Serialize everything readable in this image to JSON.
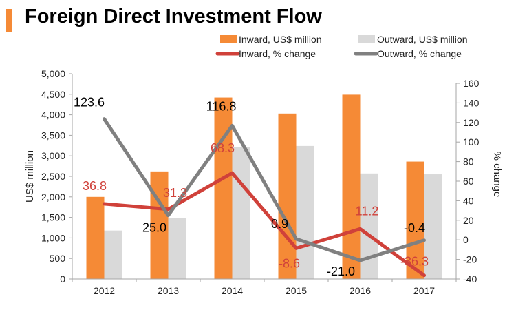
{
  "chart_data": {
    "type": "bar",
    "title": "Foreign Direct Investment Flow",
    "categories": [
      "2012",
      "2013",
      "2014",
      "2015",
      "2016",
      "2017"
    ],
    "ylabel": "US$ million",
    "y2label": "% change",
    "ylim": [
      0,
      5000
    ],
    "y_ticks": [
      "0",
      "500",
      "1,000",
      "1,500",
      "2,000",
      "2,500",
      "3,000",
      "3,500",
      "4,000",
      "4,500",
      "5,000"
    ],
    "y2lim": [
      -40,
      160
    ],
    "y2_ticks": [
      "-40",
      "-20",
      "0",
      "20",
      "40",
      "60",
      "80",
      "100",
      "120",
      "140",
      "160"
    ],
    "grid": false,
    "legend_position": "top",
    "bar_series": [
      {
        "name": "Inward, US$ million",
        "color": "#F58A36",
        "values": [
          2000,
          2620,
          4420,
          4030,
          4490,
          2860
        ]
      },
      {
        "name": "Outward, US$ million",
        "color": "#D9D9D9",
        "values": [
          1180,
          1480,
          3220,
          3240,
          2570,
          2550
        ]
      }
    ],
    "line_series": [
      {
        "name": "Inward, % change",
        "color": "#D0413A",
        "values": [
          36.8,
          31.3,
          68.3,
          -8.6,
          11.2,
          -36.3
        ],
        "labels": [
          "36.8",
          "31.3",
          "68.3",
          "-8.6",
          "11.2",
          "-36.3"
        ]
      },
      {
        "name": "Outward, % change",
        "color": "#808080",
        "values": [
          123.6,
          25.0,
          116.8,
          0.9,
          -21.0,
          -0.4
        ],
        "labels": [
          "123.6",
          "25.0",
          "116.8",
          "0.9",
          "-21.0",
          "-0.4"
        ]
      }
    ]
  },
  "colors": {
    "title_accent": "#F58A36",
    "axis": "#A6A6A6",
    "inward_label": "#D0413A",
    "outward_label": "#000000"
  }
}
